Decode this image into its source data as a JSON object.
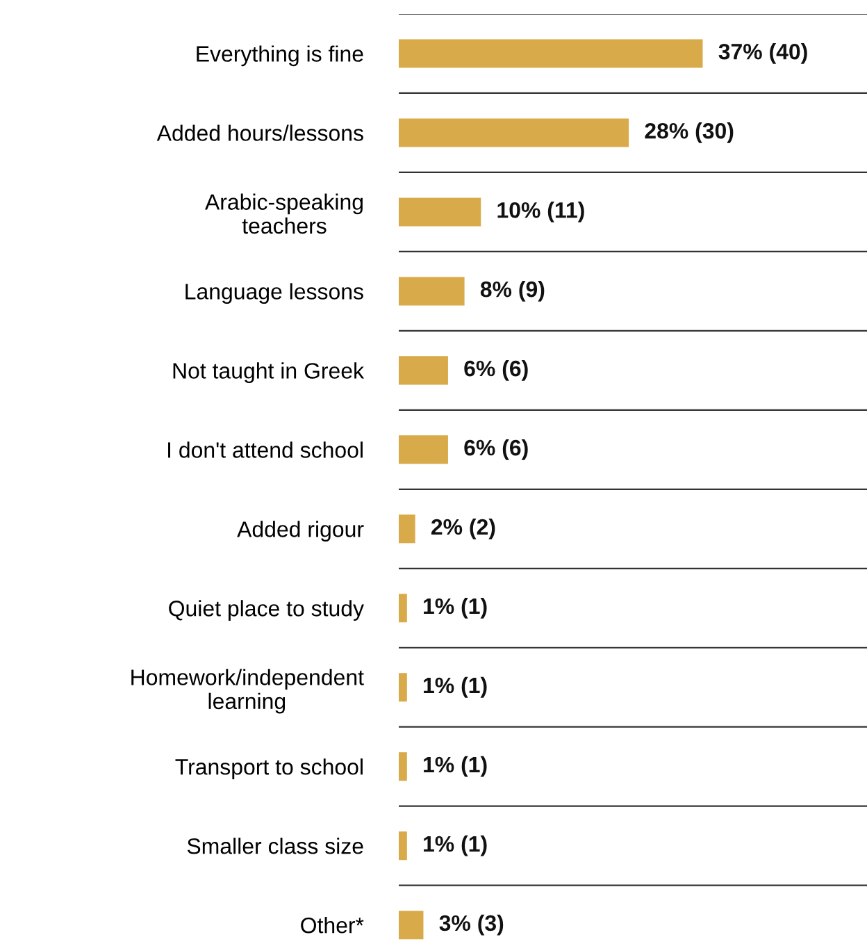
{
  "chart_data": {
    "type": "bar",
    "orientation": "horizontal",
    "categories": [
      "Everything is fine",
      "Added hours/lessons",
      "Arabic-speaking\nteachers",
      "Language lessons",
      "Not taught in Greek",
      "I don't attend school",
      "Added rigour",
      "Quiet place to study",
      "Homework/independent\nlearning",
      "Transport to school",
      "Smaller class size",
      "Other*"
    ],
    "values": [
      37,
      28,
      10,
      8,
      6,
      6,
      2,
      1,
      1,
      1,
      1,
      3
    ],
    "value_labels": [
      "37% (40)",
      "28% (30)",
      "10% (11)",
      "8% (9)",
      "6% (6)",
      "6% (6)",
      "2% (2)",
      "1% (1)",
      "1% (1)",
      "1% (1)",
      "1% (1)",
      "3% (3)"
    ],
    "color": "#d9aa4a",
    "xlim": [
      0,
      57
    ],
    "tick_labels": "y",
    "grid": true
  }
}
